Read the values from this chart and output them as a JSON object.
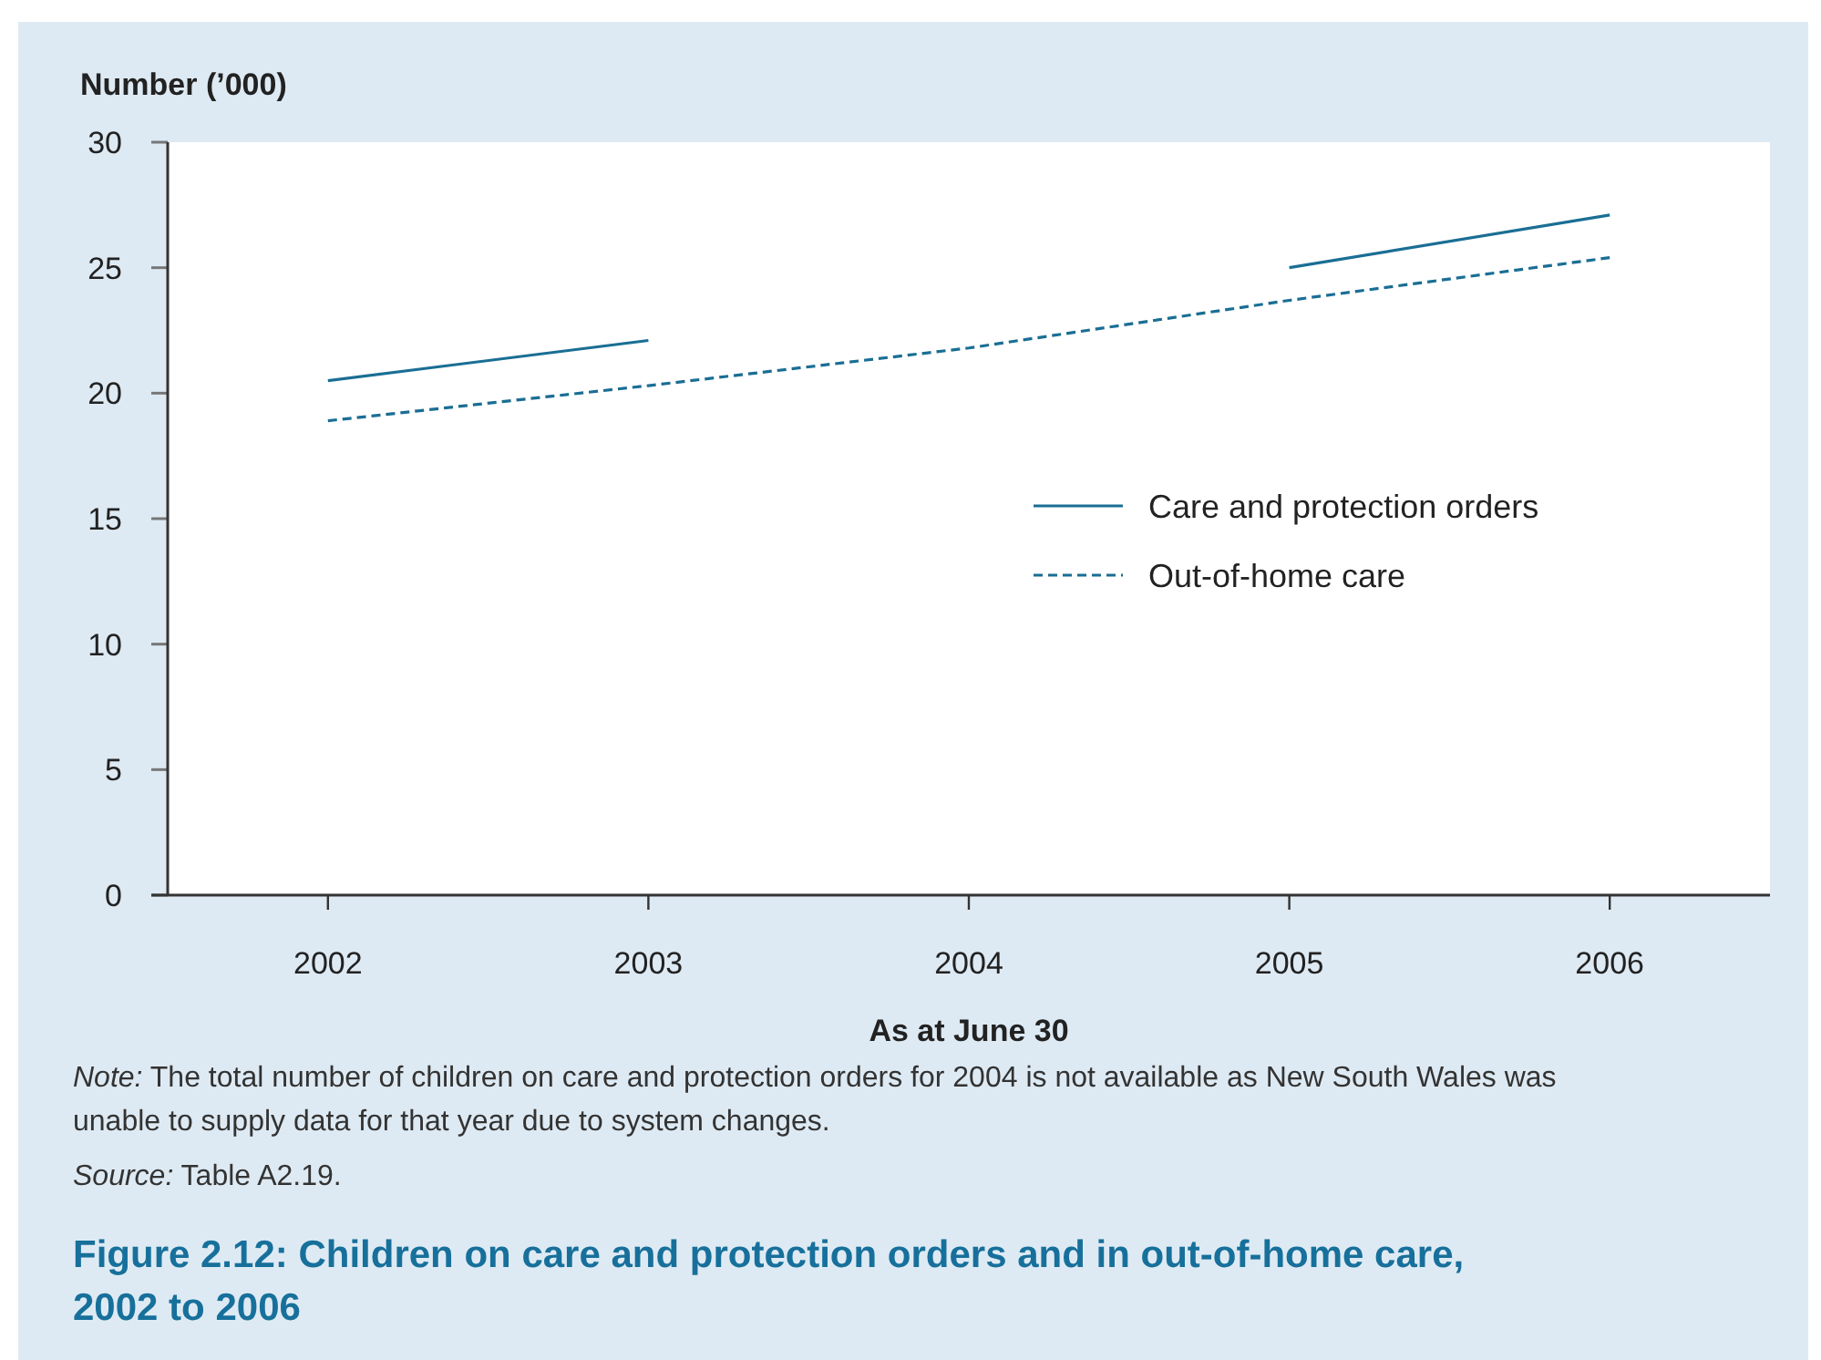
{
  "chart_data": {
    "type": "line",
    "title": "Figure 2.12: Children on care and protection orders and in out-of-home care, 2002 to 2006",
    "ylabel": "Number (’000)",
    "xlabel": "As at June 30",
    "annotations": [
      "Note: The total number of children on care and protection orders for 2004 is not available as New South Wales was unable to supply data for that year due to system changes.",
      "Source: Table A2.19."
    ],
    "categories": [
      "2002",
      "2003",
      "2004",
      "2005",
      "2006"
    ],
    "series": [
      {
        "name": "Care and protection orders",
        "color": "#1a6e94",
        "line_style": "solid",
        "values": [
          20.5,
          22.1,
          null,
          25.0,
          27.1
        ]
      },
      {
        "name": "Out-of-home care",
        "color": "#1a6e94",
        "line_style": "dashed",
        "values": [
          18.9,
          20.3,
          21.8,
          23.7,
          25.4
        ]
      }
    ],
    "ylim": [
      0,
      30
    ],
    "yticks": [
      0,
      5,
      10,
      15,
      20,
      25,
      30
    ],
    "legend": "right"
  }
}
